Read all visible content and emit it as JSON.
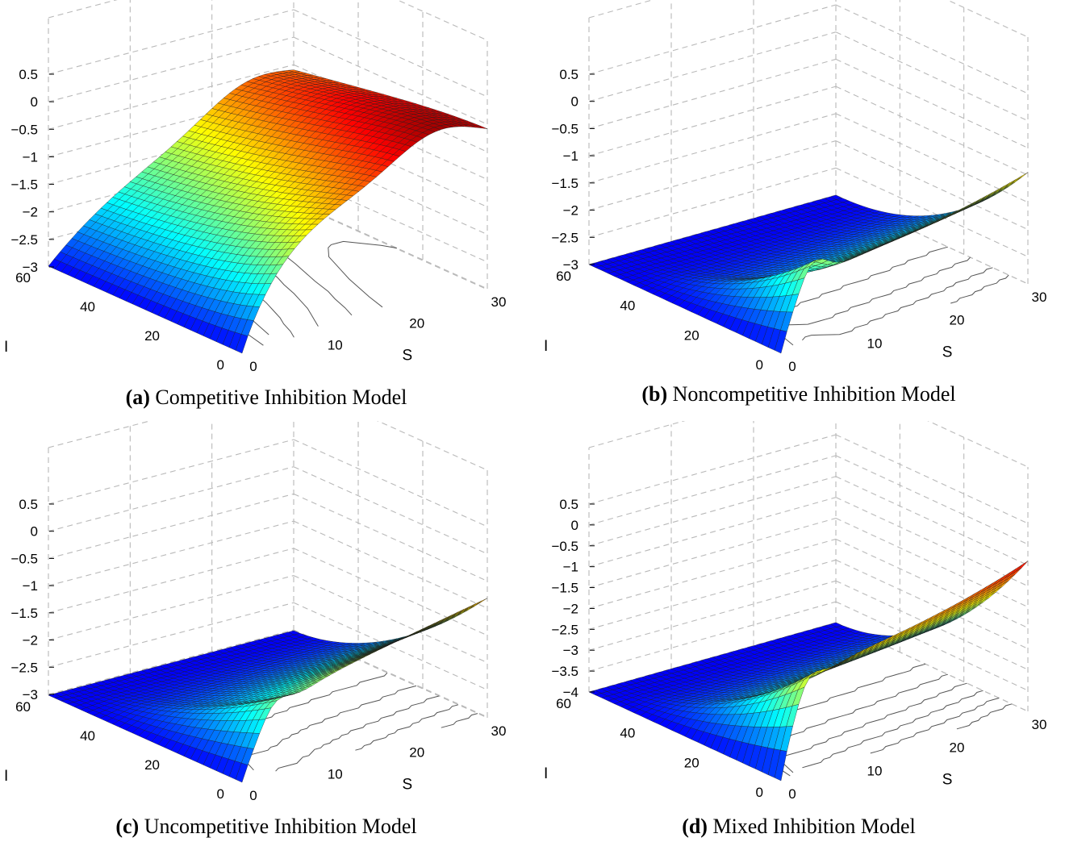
{
  "chart_data": [
    {
      "type": "surface",
      "caption_tag": "(a)",
      "caption_text": "Competitive Inhibition Model",
      "xlabel": "S",
      "ylabel": "I",
      "xlim": [
        0,
        30
      ],
      "ylim": [
        0,
        60
      ],
      "zlim": [
        -3,
        0.5
      ],
      "x_ticks": [
        "0",
        "10",
        "20",
        "30"
      ],
      "y_ticks": [
        "0",
        "20",
        "40",
        "60"
      ],
      "z_ticks": [
        "0.5",
        "0",
        "−0.5",
        "−1",
        "−1.5",
        "−2",
        "−2.5",
        "−3"
      ],
      "grid": true,
      "contours_on_floor": true,
      "colormap": "jet"
    },
    {
      "type": "surface",
      "caption_tag": "(b)",
      "caption_text": "Noncompetitive Inhibition Model",
      "xlabel": "S",
      "ylabel": "I",
      "xlim": [
        0,
        30
      ],
      "ylim": [
        0,
        60
      ],
      "zlim": [
        -3,
        0.5
      ],
      "x_ticks": [
        "0",
        "10",
        "20",
        "30"
      ],
      "y_ticks": [
        "0",
        "20",
        "40",
        "60"
      ],
      "z_ticks": [
        "0.5",
        "0",
        "−0.5",
        "−1",
        "−1.5",
        "−2",
        "−2.5",
        "−3"
      ],
      "grid": true,
      "contours_on_floor": true,
      "colormap": "jet"
    },
    {
      "type": "surface",
      "caption_tag": "(c)",
      "caption_text": "Uncompetitive Inhibition Model",
      "xlabel": "S",
      "ylabel": "I",
      "xlim": [
        0,
        30
      ],
      "ylim": [
        0,
        60
      ],
      "zlim": [
        -3,
        0.5
      ],
      "x_ticks": [
        "0",
        "10",
        "20",
        "30"
      ],
      "y_ticks": [
        "0",
        "20",
        "40",
        "60"
      ],
      "z_ticks": [
        "0.5",
        "0",
        "−0.5",
        "−1",
        "−1.5",
        "−2",
        "−2.5",
        "−3"
      ],
      "grid": true,
      "contours_on_floor": true,
      "colormap": "jet"
    },
    {
      "type": "surface",
      "caption_tag": "(d)",
      "caption_text": "Mixed Inhibition Model",
      "xlabel": "S",
      "ylabel": "I",
      "xlim": [
        0,
        30
      ],
      "ylim": [
        0,
        60
      ],
      "zlim": [
        -4,
        0.5
      ],
      "x_ticks": [
        "0",
        "10",
        "20",
        "30"
      ],
      "y_ticks": [
        "0",
        "20",
        "40",
        "60"
      ],
      "z_ticks": [
        "0.5",
        "0",
        "−0.5",
        "−1",
        "−1.5",
        "−2",
        "−2.5",
        "−3",
        "−3.5",
        "−4"
      ],
      "grid": true,
      "contours_on_floor": true,
      "colormap": "jet"
    }
  ]
}
